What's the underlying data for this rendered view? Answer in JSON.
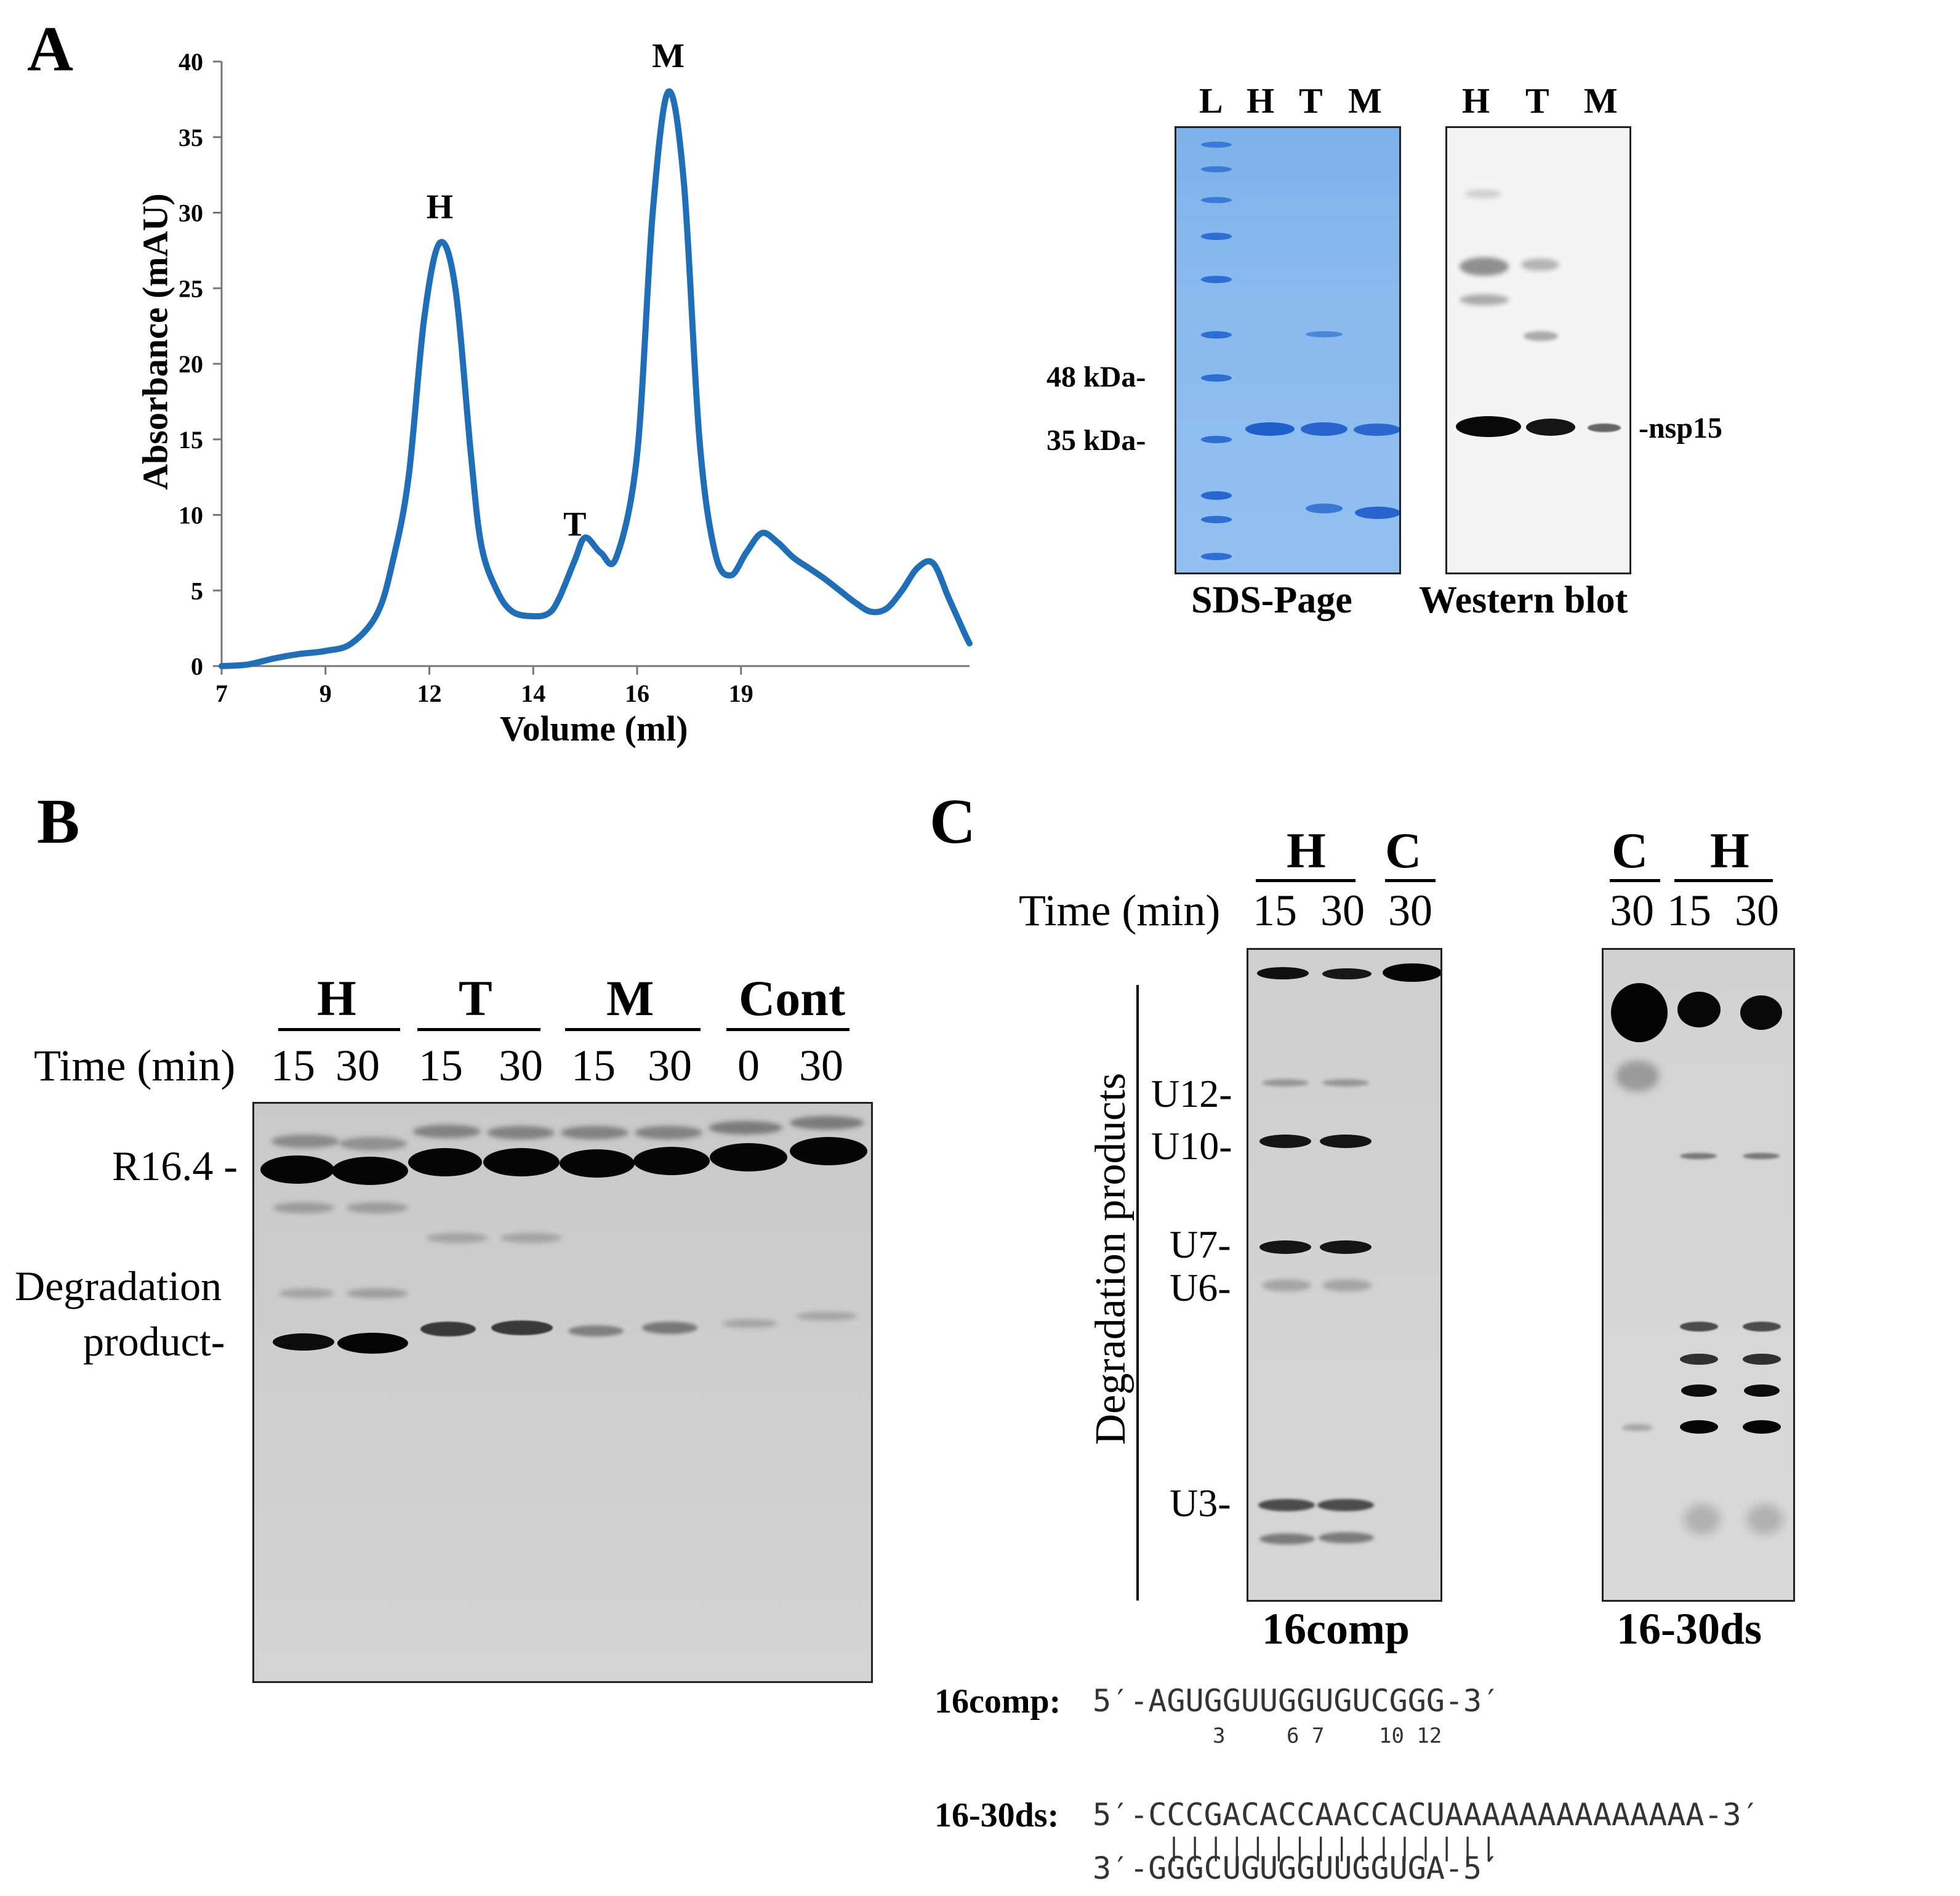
{
  "panel_a": {
    "letter": "A",
    "chart_data": {
      "type": "line",
      "title": "",
      "xlabel": "Volume (ml)",
      "ylabel": "Absorbance (mAU)",
      "xticks": [
        "7",
        "9",
        "12",
        "14",
        "16",
        "19"
      ],
      "yticks": [
        "0",
        "5",
        "10",
        "15",
        "20",
        "25",
        "30",
        "35",
        "40"
      ],
      "ylim": [
        0,
        40
      ],
      "color": "#1f6fb8",
      "peak_labels": [
        "H",
        "T",
        "M"
      ],
      "series": [
        {
          "x": [
            7.0,
            7.5,
            8.0,
            8.5,
            9.0,
            9.5,
            10.0,
            10.3,
            10.6,
            10.9,
            11.2,
            11.5,
            11.8,
            12.0,
            12.3,
            12.6,
            13.0,
            13.3,
            13.5,
            13.8,
            14.0,
            14.3,
            14.6,
            15.0,
            15.3,
            15.6,
            15.9,
            16.2,
            16.5,
            16.8,
            17.1,
            17.4,
            17.7,
            18.0,
            18.3,
            18.6,
            18.9,
            19.2,
            19.5,
            19.8,
            20.1,
            20.4,
            20.7,
            21.0,
            21.3,
            21.4
          ],
          "y": [
            0.0,
            0.1,
            0.5,
            0.8,
            1.0,
            1.5,
            3.5,
            7.0,
            12.5,
            23.0,
            28.0,
            25.0,
            14.0,
            8.0,
            5.0,
            3.6,
            3.3,
            3.5,
            4.5,
            7.0,
            8.5,
            7.5,
            7.2,
            14.0,
            30.0,
            38.0,
            32.0,
            15.0,
            7.5,
            6.0,
            7.5,
            8.8,
            8.2,
            7.2,
            6.5,
            5.8,
            5.0,
            4.2,
            3.6,
            3.8,
            5.0,
            6.5,
            6.8,
            4.5,
            2.2,
            1.5
          ]
        }
      ]
    },
    "gel_labels": {
      "sds_lanes": [
        "L",
        "H",
        "T",
        "M"
      ],
      "wb_lanes": [
        "H",
        "T",
        "M"
      ],
      "markers": [
        "48 kDa-",
        "35 kDa-"
      ],
      "protein": "-nsp15",
      "sds_caption": "SDS-Page",
      "wb_caption": "Western blot"
    }
  },
  "panel_b": {
    "letter": "B",
    "groups": [
      "H",
      "T",
      "M",
      "Cont"
    ],
    "time_label": "Time (min)",
    "times": [
      "15",
      "30",
      "15",
      "30",
      "15",
      "30",
      "0",
      "30"
    ],
    "substrate_label": "R16.4 -",
    "product_label_1": "Degradation",
    "product_label_2": "product-"
  },
  "panel_c": {
    "letter": "C",
    "time_label": "Time (min)",
    "gel1": {
      "groups": [
        "H",
        "C"
      ],
      "times": [
        "15",
        "30",
        "30"
      ],
      "caption": "16comp",
      "side_label": "Degradation products",
      "markers": [
        "U12-",
        "U10-",
        "U7-",
        "U6-",
        "U3-"
      ]
    },
    "gel2": {
      "groups": [
        "C",
        "H"
      ],
      "times": [
        "30",
        "15",
        "30"
      ],
      "caption": "16-30ds"
    },
    "sequences": {
      "comp_label": "16comp:",
      "comp_seq": "5′-AGUGGUUGGUGUCGGG-3′",
      "comp_positions": [
        "3",
        "6 7",
        "10 12"
      ],
      "ds_label": "16-30ds:",
      "ds_top": "5′-CCCGACACCAACCACUAAAAAAAAAAAAAA-3′",
      "ds_pairs": "||||||||||||||||",
      "ds_bottom": "3′-GGGCUGUGGUUGGUGA-5′"
    }
  }
}
